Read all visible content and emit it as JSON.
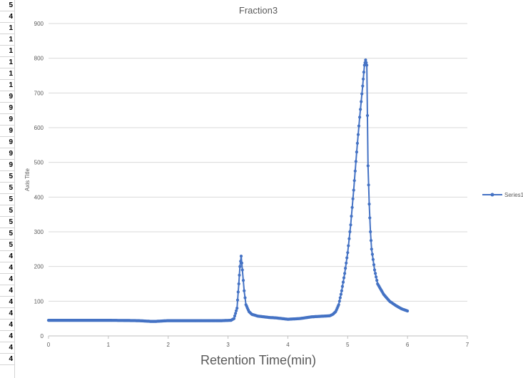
{
  "spreadsheet": {
    "row_cells": [
      "5",
      "4",
      "1",
      "1",
      "1",
      "1",
      "1",
      "1",
      "9",
      "9",
      "9",
      "9",
      "9",
      "9",
      "9",
      "5",
      "5",
      "5",
      "5",
      "5",
      "5",
      "5",
      "4",
      "4",
      "4",
      "4",
      "4",
      "4",
      "4",
      "4",
      "4",
      "4"
    ]
  },
  "chart_data": {
    "type": "line",
    "title": "Fraction3",
    "xlabel": "Retention Time(min)",
    "ylabel": "Axis Title",
    "xlim": [
      0,
      7
    ],
    "ylim": [
      0,
      900
    ],
    "xticks": [
      0,
      1,
      2,
      3,
      4,
      5,
      6,
      7
    ],
    "yticks": [
      0,
      100,
      200,
      300,
      400,
      500,
      600,
      700,
      800,
      900
    ],
    "grid": true,
    "legend_position": "right",
    "series": [
      {
        "name": "Series1",
        "color": "#4472c4",
        "x": [
          0,
          0.5,
          1.0,
          1.5,
          1.7,
          1.8,
          2.0,
          2.5,
          2.9,
          3.05,
          3.1,
          3.15,
          3.18,
          3.2,
          3.22,
          3.24,
          3.27,
          3.3,
          3.35,
          3.4,
          3.5,
          3.6,
          3.7,
          3.8,
          3.9,
          4.0,
          4.2,
          4.4,
          4.6,
          4.7,
          4.75,
          4.8,
          4.85,
          4.9,
          4.95,
          5.0,
          5.05,
          5.1,
          5.15,
          5.2,
          5.25,
          5.28,
          5.3,
          5.32,
          5.34,
          5.36,
          5.38,
          5.4,
          5.45,
          5.5,
          5.6,
          5.7,
          5.8,
          5.9,
          6.0
        ],
        "y": [
          45,
          45,
          45,
          44,
          42,
          42,
          44,
          44,
          44,
          45,
          50,
          80,
          150,
          200,
          230,
          190,
          130,
          90,
          70,
          62,
          57,
          55,
          53,
          52,
          50,
          48,
          50,
          55,
          57,
          58,
          62,
          70,
          90,
          130,
          180,
          240,
          320,
          420,
          530,
          630,
          720,
          780,
          795,
          780,
          490,
          380,
          300,
          250,
          190,
          150,
          120,
          100,
          88,
          78,
          72
        ]
      }
    ]
  }
}
